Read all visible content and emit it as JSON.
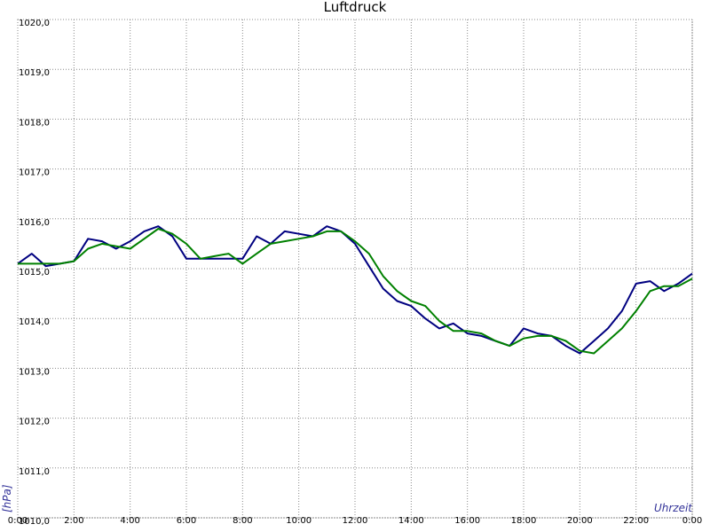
{
  "chart_data": {
    "type": "line",
    "title": "Luftdruck",
    "ylabel": "[hPa]",
    "xlabel": "Uhrzeit",
    "x": [
      0,
      0.5,
      1,
      1.5,
      2,
      2.5,
      3,
      3.5,
      4,
      4.5,
      5,
      5.5,
      6,
      6.5,
      7,
      7.5,
      8,
      8.5,
      9,
      9.5,
      10,
      10.5,
      11,
      11.5,
      12,
      12.5,
      13,
      13.5,
      14,
      14.5,
      15,
      15.5,
      16,
      16.5,
      17,
      17.5,
      18,
      18.5,
      19,
      19.5,
      20,
      20.5,
      21,
      21.5,
      22,
      22.5,
      23,
      23.5,
      24
    ],
    "series": [
      {
        "color": "#000080",
        "values": [
          1015.1,
          1015.3,
          1015.05,
          1015.1,
          1015.15,
          1015.6,
          1015.55,
          1015.4,
          1015.55,
          1015.75,
          1015.85,
          1015.65,
          1015.2,
          1015.2,
          1015.2,
          1015.2,
          1015.2,
          1015.65,
          1015.5,
          1015.75,
          1015.7,
          1015.65,
          1015.85,
          1015.75,
          1015.5,
          1015.05,
          1014.6,
          1014.35,
          1014.25,
          1014.0,
          1013.8,
          1013.9,
          1013.7,
          1013.65,
          1013.55,
          1013.45,
          1013.8,
          1013.7,
          1013.65,
          1013.45,
          1013.3,
          1013.55,
          1013.8,
          1014.15,
          1014.7,
          1014.75,
          1014.55,
          1014.7,
          1014.9
        ]
      },
      {
        "color": "#008000",
        "values": [
          1015.1,
          1015.1,
          1015.1,
          1015.1,
          1015.15,
          1015.4,
          1015.5,
          1015.45,
          1015.4,
          1015.6,
          1015.8,
          1015.7,
          1015.5,
          1015.2,
          1015.25,
          1015.3,
          1015.1,
          1015.3,
          1015.5,
          1015.55,
          1015.6,
          1015.65,
          1015.75,
          1015.75,
          1015.55,
          1015.3,
          1014.85,
          1014.55,
          1014.35,
          1014.25,
          1013.95,
          1013.75,
          1013.75,
          1013.7,
          1013.55,
          1013.45,
          1013.6,
          1013.65,
          1013.65,
          1013.55,
          1013.35,
          1013.3,
          1013.55,
          1013.8,
          1014.15,
          1014.55,
          1014.65,
          1014.65,
          1014.8
        ]
      }
    ],
    "xlim": [
      0,
      24
    ],
    "xticks": [
      {
        "value": 0,
        "label": "0:00"
      },
      {
        "value": 2,
        "label": "2:00"
      },
      {
        "value": 4,
        "label": "4:00"
      },
      {
        "value": 6,
        "label": "6:00"
      },
      {
        "value": 8,
        "label": "8:00"
      },
      {
        "value": 10,
        "label": "10:00"
      },
      {
        "value": 12,
        "label": "12:00"
      },
      {
        "value": 14,
        "label": "14:00"
      },
      {
        "value": 16,
        "label": "16:00"
      },
      {
        "value": 18,
        "label": "18:00"
      },
      {
        "value": 20,
        "label": "20:00"
      },
      {
        "value": 22,
        "label": "22:00"
      },
      {
        "value": 24,
        "label": "0:00"
      }
    ],
    "ylim": [
      1010,
      1020
    ],
    "yticks": [
      {
        "value": 1010,
        "label": "1010,0"
      },
      {
        "value": 1011,
        "label": "1011,0"
      },
      {
        "value": 1012,
        "label": "1012,0"
      },
      {
        "value": 1013,
        "label": "1013,0"
      },
      {
        "value": 1014,
        "label": "1014,0"
      },
      {
        "value": 1015,
        "label": "1015,0"
      },
      {
        "value": 1016,
        "label": "1016,0"
      },
      {
        "value": 1017,
        "label": "1017,0"
      },
      {
        "value": 1018,
        "label": "1018,0"
      },
      {
        "value": 1019,
        "label": "1019,0"
      },
      {
        "value": 1020,
        "label": "1020,0"
      }
    ],
    "grid": true
  }
}
